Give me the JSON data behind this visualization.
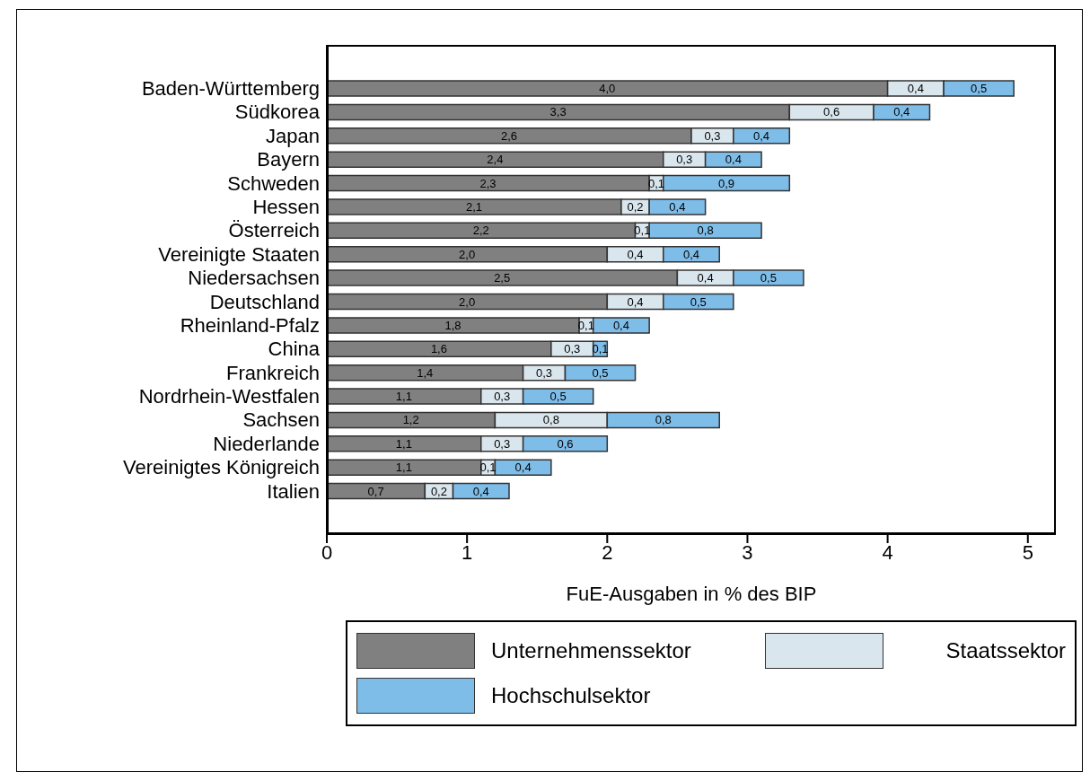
{
  "chart_data": {
    "type": "bar",
    "orientation": "horizontal",
    "stacked": true,
    "xlabel": "FuE-Ausgaben in % des BIP",
    "categories": [
      "Baden-Württemberg",
      "Südkorea",
      "Japan",
      "Bayern",
      "Schweden",
      "Hessen",
      "Österreich",
      "Vereinigte Staaten",
      "Niedersachsen",
      "Deutschland",
      "Rheinland-Pfalz",
      "China",
      "Frankreich",
      "Nordrhein-Westfalen",
      "Sachsen",
      "Niederlande",
      "Vereinigtes Königreich",
      "Italien"
    ],
    "series": [
      {
        "name": "Unternehmenssektor",
        "color": "#808080",
        "values": [
          4.0,
          3.3,
          2.6,
          2.4,
          2.3,
          2.1,
          2.2,
          2.0,
          2.5,
          2.0,
          1.8,
          1.6,
          1.4,
          1.1,
          1.2,
          1.1,
          1.1,
          0.7
        ],
        "value_labels": [
          "4,0",
          "3,3",
          "2,6",
          "2,4",
          "2,3",
          "2,1",
          "2,2",
          "2,0",
          "2,5",
          "2,0",
          "1,8",
          "1,6",
          "1,4",
          "1,1",
          "1,2",
          "1,1",
          "1,1",
          "0,7"
        ]
      },
      {
        "name": "Staatssektor",
        "color": "#dae6ed",
        "values": [
          0.4,
          0.6,
          0.3,
          0.3,
          0.1,
          0.2,
          0.1,
          0.4,
          0.4,
          0.4,
          0.1,
          0.3,
          0.3,
          0.3,
          0.8,
          0.3,
          0.1,
          0.2
        ],
        "value_labels": [
          "0,4",
          "0,6",
          "0,3",
          "0,3",
          "0,1",
          "0,2",
          "0,1",
          "0,4",
          "0,4",
          "0,4",
          "0,1",
          "0,3",
          "0,3",
          "0,3",
          "0,8",
          "0,3",
          "0,1",
          "0,2"
        ]
      },
      {
        "name": "Hochschulsektor",
        "color": "#7fbde9",
        "values": [
          0.5,
          0.4,
          0.4,
          0.4,
          0.9,
          0.4,
          0.8,
          0.4,
          0.5,
          0.5,
          0.4,
          0.1,
          0.5,
          0.5,
          0.8,
          0.6,
          0.4,
          0.4
        ],
        "value_labels": [
          "0,5",
          "0,4",
          "0,4",
          "0,4",
          "0,9",
          "0,4",
          "0,8",
          "0,4",
          "0,5",
          "0,5",
          "0,4",
          "0,1",
          "0,5",
          "0,5",
          "0,8",
          "0,6",
          "0,4",
          "0,4"
        ]
      }
    ],
    "xlim": [
      0,
      5.2
    ],
    "xticks": [
      0,
      1,
      2,
      3,
      4,
      5
    ],
    "legend": "bottom"
  }
}
